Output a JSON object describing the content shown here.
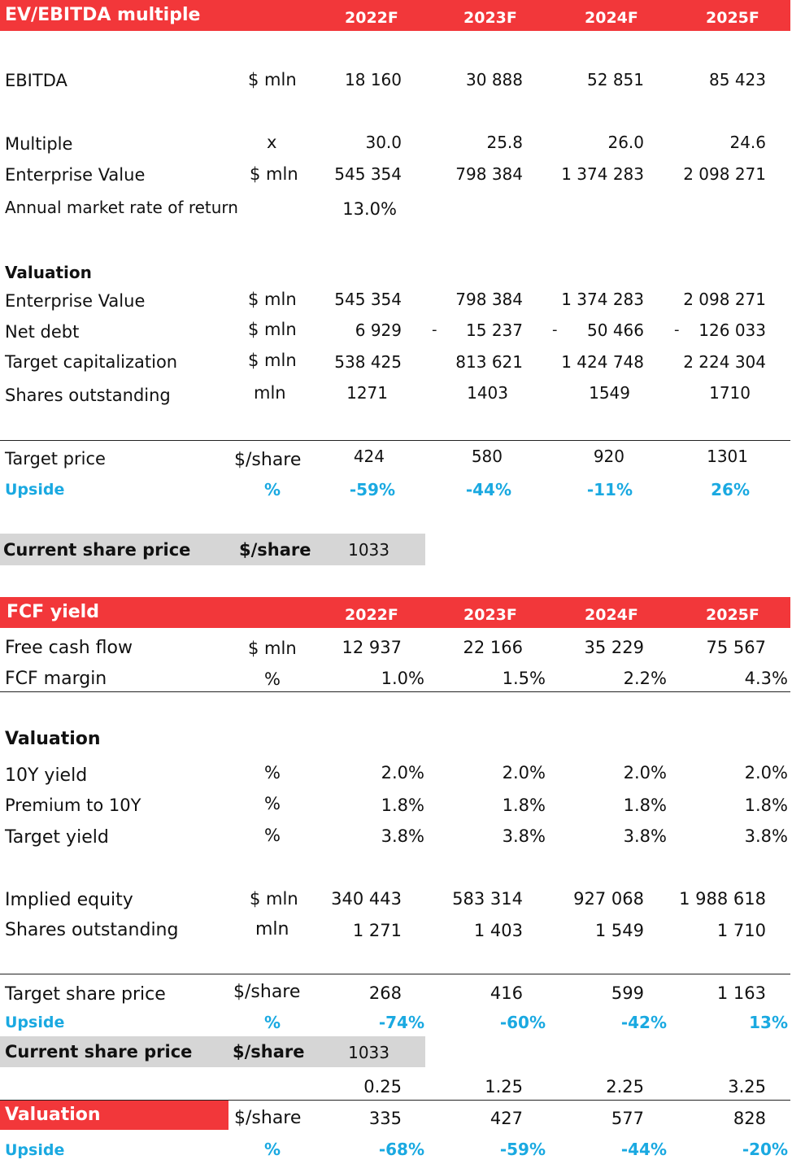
{
  "ev": {
    "title": "EV/EBITDA multiple",
    "years": [
      "2022F",
      "2023F",
      "2024F",
      "2025F"
    ],
    "ebitda": {
      "label": "EBITDA",
      "unit": "$ mln",
      "values": [
        "18 160",
        "30 888",
        "52 851",
        "85 423"
      ]
    },
    "multiple": {
      "label": "Multiple",
      "unit": "x",
      "values": [
        "30.0",
        "25.8",
        "26.0",
        "24.6"
      ]
    },
    "enterprise_value": {
      "label": "Enterprise Value",
      "unit": "$ mln",
      "values": [
        "545 354",
        "798 384",
        "1 374 283",
        "2 098 271"
      ]
    },
    "market_return": {
      "label": "Annual market rate of return",
      "value": "13.0%"
    },
    "valuation_heading": "Valuation",
    "val_ev": {
      "label": "Enterprise Value",
      "unit": "$ mln",
      "values": [
        "545 354",
        "798 384",
        "1 374 283",
        "2 098 271"
      ]
    },
    "net_debt": {
      "label": "Net debt",
      "unit": "$ mln",
      "values": [
        "6 929",
        "15 237",
        "50 466",
        "126 033"
      ],
      "dashes": [
        "-",
        "-",
        "-"
      ]
    },
    "target_cap": {
      "label": "Target capitalization",
      "unit": "$ mln",
      "values": [
        "538 425",
        "813 621",
        "1 424 748",
        "2 224 304"
      ]
    },
    "shares": {
      "label": "Shares outstanding",
      "unit": "mln",
      "values": [
        "1271",
        "1403",
        "1549",
        "1710"
      ]
    },
    "target_price": {
      "label": "Target price",
      "unit": "$/share",
      "values": [
        "424",
        "580",
        "920",
        "1301"
      ]
    },
    "upside": {
      "label": "Upside",
      "unit": "%",
      "values": [
        "-59%",
        "-44%",
        "-11%",
        "26%"
      ]
    },
    "current": {
      "label": "Current share price",
      "unit": "$/share",
      "value": "1033"
    }
  },
  "fcf": {
    "title": "FCF yield",
    "years": [
      "2022F",
      "2023F",
      "2024F",
      "2025F"
    ],
    "free_cash_flow": {
      "label": "Free cash flow",
      "unit": "$ mln",
      "values": [
        "12 937",
        "22 166",
        "35 229",
        "75 567"
      ]
    },
    "fcf_margin": {
      "label": "FCF margin",
      "unit": "%",
      "values": [
        "1.0%",
        "1.5%",
        "2.2%",
        "4.3%"
      ]
    },
    "valuation_heading": "Valuation",
    "yield_10y": {
      "label": "10Y yield",
      "unit": "%",
      "values": [
        "2.0%",
        "2.0%",
        "2.0%",
        "2.0%"
      ]
    },
    "premium": {
      "label": "Premium to 10Y",
      "unit": "%",
      "values": [
        "1.8%",
        "1.8%",
        "1.8%",
        "1.8%"
      ]
    },
    "target_yield": {
      "label": "Target yield",
      "unit": "%",
      "values": [
        "3.8%",
        "3.8%",
        "3.8%",
        "3.8%"
      ]
    },
    "implied_equity": {
      "label": "Implied equity",
      "unit": "$ mln",
      "values": [
        "340 443",
        "583 314",
        "927 068",
        "1 988 618"
      ]
    },
    "shares": {
      "label": "Shares outstanding",
      "unit": "mln",
      "values": [
        "1 271",
        "1 403",
        "1 549",
        "1 710"
      ]
    },
    "target_share_price": {
      "label": "Target share price",
      "unit": "$/share",
      "values": [
        "268",
        "416",
        "599",
        "1 163"
      ]
    },
    "upside": {
      "label": "Upside",
      "unit": "%",
      "values": [
        "-74%",
        "-60%",
        "-42%",
        "13%"
      ]
    },
    "current": {
      "label": "Current share price",
      "unit": "$/share",
      "value": "1033"
    }
  },
  "summary": {
    "weights": [
      "0.25",
      "1.25",
      "2.25",
      "3.25"
    ],
    "valuation": {
      "label": "Valuation",
      "unit": "$/share",
      "values": [
        "335",
        "427",
        "577",
        "828"
      ]
    },
    "upside": {
      "label": "Upside",
      "unit": "%",
      "values": [
        "-68%",
        "-59%",
        "-44%",
        "-20%"
      ]
    }
  },
  "colors": {
    "header": "#f2373a",
    "accent": "#1aa9e1",
    "gray": "#d6d6d6"
  }
}
